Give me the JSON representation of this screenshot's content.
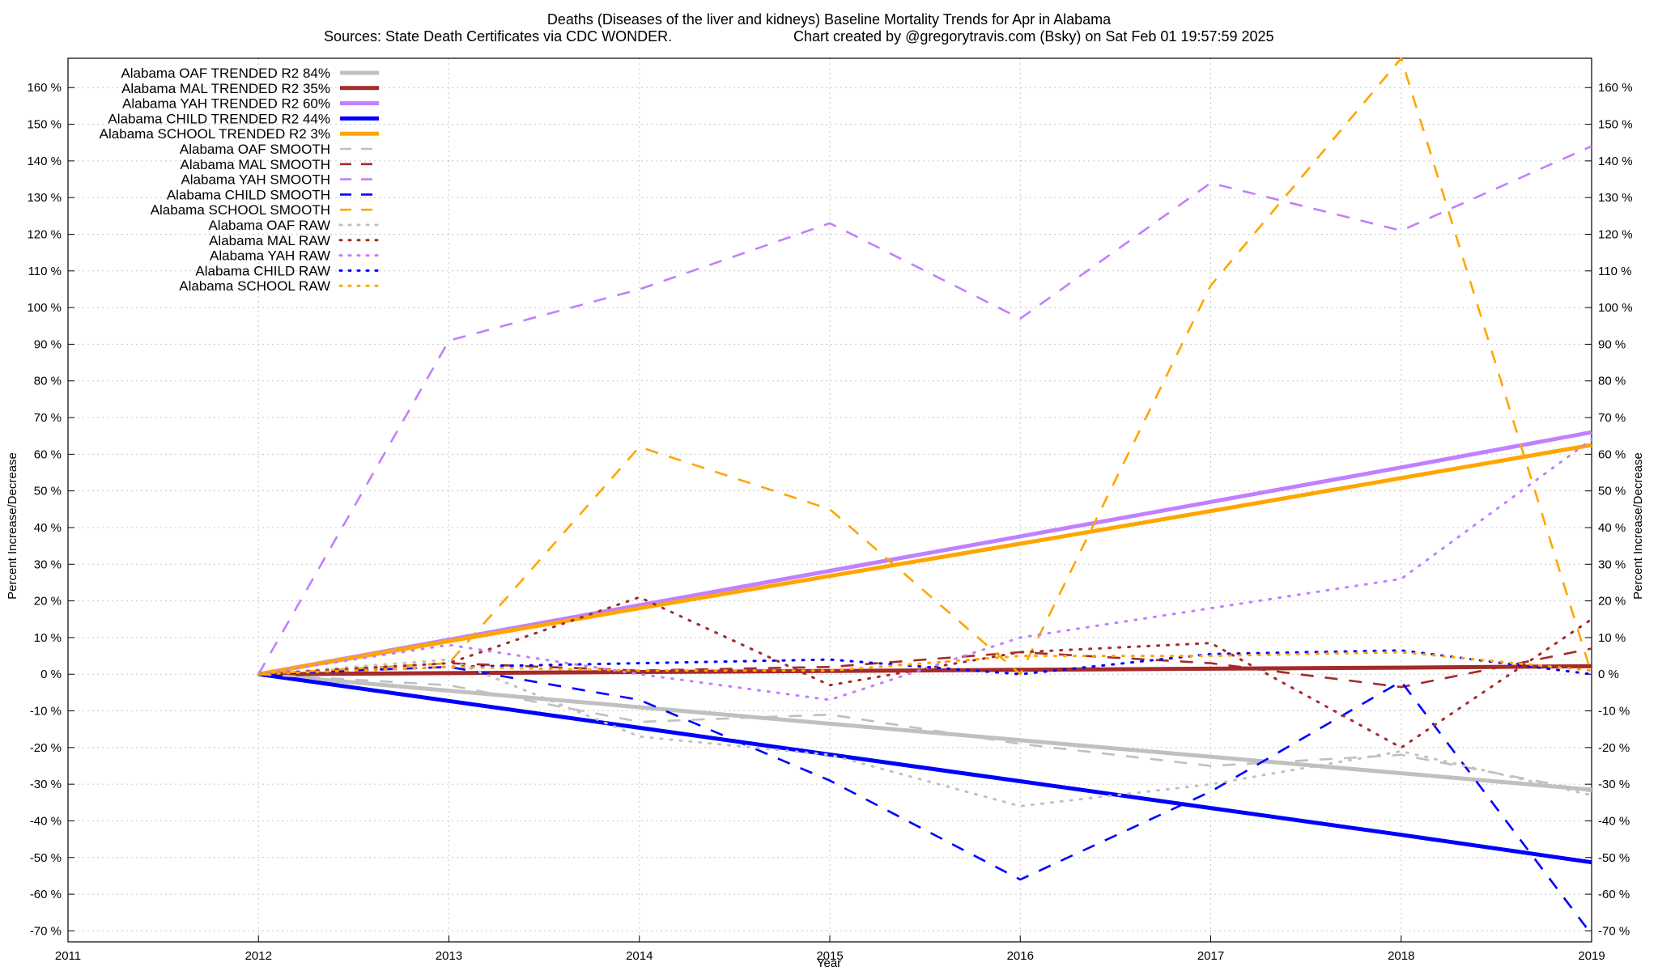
{
  "chart_data": {
    "type": "line",
    "title": "Deaths (Diseases of the liver and kidneys)  Baseline Mortality Trends for Apr in Alabama",
    "subtitle_left": "Sources: State Death Certificates via CDC WONDER.",
    "subtitle_right": "Chart created by @gregorytravis.com (Bsky) on Sat Feb 01 19:57:59 2025",
    "xlabel": "Year",
    "ylabel": "Percent Increase/Decrease",
    "xlim": [
      2011,
      2019
    ],
    "ylim": [
      -73,
      168
    ],
    "x_ticks": [
      "2011",
      "2012",
      "2013",
      "2014",
      "2015",
      "2016",
      "2017",
      "2018",
      "2019"
    ],
    "y_ticks": [
      {
        "value": 160,
        "label": "160 %"
      },
      {
        "value": 150,
        "label": "150 %"
      },
      {
        "value": 140,
        "label": "140 %"
      },
      {
        "value": 130,
        "label": "130 %"
      },
      {
        "value": 120,
        "label": "120 %"
      },
      {
        "value": 110,
        "label": "110 %"
      },
      {
        "value": 100,
        "label": "100 %"
      },
      {
        "value": 90,
        "label": "90 %"
      },
      {
        "value": 80,
        "label": "80 %"
      },
      {
        "value": 70,
        "label": "70 %"
      },
      {
        "value": 60,
        "label": "60 %"
      },
      {
        "value": 50,
        "label": "50 %"
      },
      {
        "value": 40,
        "label": "40 %"
      },
      {
        "value": 30,
        "label": "30 %"
      },
      {
        "value": 20,
        "label": "20 %"
      },
      {
        "value": 10,
        "label": "10 %"
      },
      {
        "value": 0,
        "label": "0 %"
      },
      {
        "value": -10,
        "label": "-10 %"
      },
      {
        "value": -20,
        "label": "-20 %"
      },
      {
        "value": -30,
        "label": "-30 %"
      },
      {
        "value": -40,
        "label": "-40 %"
      },
      {
        "value": -50,
        "label": "-50 %"
      },
      {
        "value": -60,
        "label": "-60 %"
      },
      {
        "value": -70,
        "label": "-70 %"
      }
    ],
    "grid": true,
    "legend_position": "top-left",
    "x": [
      2012,
      2013,
      2014,
      2015,
      2016,
      2017,
      2018,
      2019
    ],
    "series": [
      {
        "name": "Alabama OAF TRENDED R2  84%",
        "style": "solid",
        "color": "#c0c0c0",
        "values": [
          0,
          -4.5,
          -9,
          -13.5,
          -18,
          -22.5,
          -27,
          -31.5
        ]
      },
      {
        "name": "Alabama MAL TRENDED R2  35%",
        "style": "solid",
        "color": "#a52a2a",
        "values": [
          0,
          0.3,
          0.6,
          0.9,
          1.2,
          1.5,
          1.8,
          2.2
        ]
      },
      {
        "name": "Alabama YAH TRENDED R2  60%",
        "style": "solid",
        "color": "#c080ff",
        "values": [
          0,
          9.4,
          18.8,
          28.2,
          37.6,
          47,
          56.4,
          66
        ]
      },
      {
        "name": "Alabama CHILD TRENDED R2  44%",
        "style": "solid",
        "color": "#0000ff",
        "values": [
          0,
          -7.3,
          -14.6,
          -21.9,
          -29.2,
          -36.5,
          -43.8,
          -51.3
        ]
      },
      {
        "name": "Alabama SCHOOL TRENDED R2   3%",
        "style": "solid",
        "color": "#ffa500",
        "values": [
          0,
          9,
          18,
          26.8,
          35.6,
          44.5,
          53.5,
          62.5
        ]
      },
      {
        "name": "Alabama OAF SMOOTH",
        "style": "dash",
        "color": "#c0c0c0",
        "values": [
          0,
          -3,
          -13,
          -11,
          -19,
          -25,
          -22,
          -32
        ]
      },
      {
        "name": "Alabama MAL SMOOTH",
        "style": "dash",
        "color": "#a52a2a",
        "values": [
          0,
          3,
          1,
          2,
          6,
          3,
          -3.5,
          7
        ]
      },
      {
        "name": "Alabama YAH SMOOTH",
        "style": "dash",
        "color": "#c080ff",
        "values": [
          0,
          91,
          105,
          123,
          97,
          134,
          121,
          144
        ]
      },
      {
        "name": "Alabama CHILD SMOOTH",
        "style": "dash",
        "color": "#0000ff",
        "values": [
          0,
          2,
          -7,
          -29,
          -56,
          -32,
          -2,
          -71
        ]
      },
      {
        "name": "Alabama SCHOOL SMOOTH",
        "style": "dash",
        "color": "#ffa500",
        "values": [
          0,
          3,
          62,
          45,
          0,
          106,
          168,
          0
        ]
      },
      {
        "name": "Alabama OAF RAW",
        "style": "dot",
        "color": "#c0c0c0",
        "values": [
          0,
          4,
          -17,
          -22,
          -36,
          -30,
          -21,
          -33
        ]
      },
      {
        "name": "Alabama MAL RAW",
        "style": "dot",
        "color": "#a52a2a",
        "values": [
          0,
          3,
          21,
          -3,
          6,
          8.5,
          -20,
          15
        ]
      },
      {
        "name": "Alabama YAH RAW",
        "style": "dot",
        "color": "#c080ff",
        "values": [
          0,
          8,
          0,
          -7,
          10,
          18,
          26,
          64
        ]
      },
      {
        "name": "Alabama CHILD RAW",
        "style": "dot",
        "color": "#0000ff",
        "values": [
          0,
          2,
          3,
          4,
          0,
          5.5,
          6.5,
          0
        ]
      },
      {
        "name": "Alabama SCHOOL RAW",
        "style": "dot",
        "color": "#ffa500",
        "values": [
          0,
          2,
          1,
          1,
          5,
          5,
          6,
          1
        ]
      }
    ]
  }
}
